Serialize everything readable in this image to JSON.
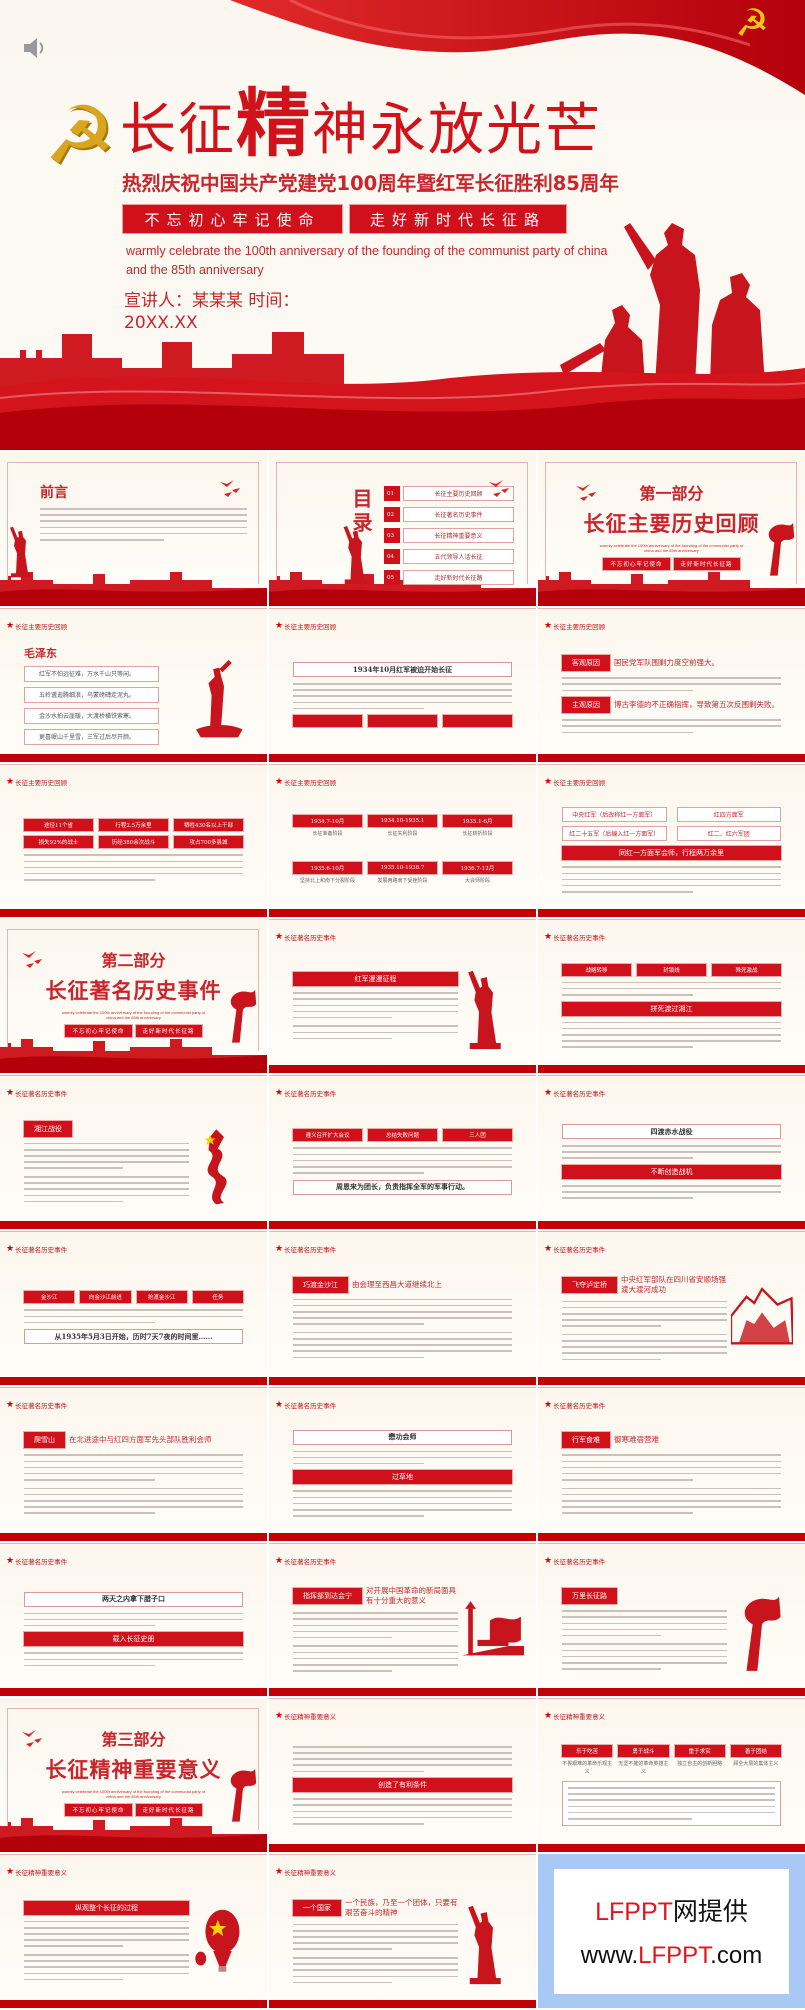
{
  "cover": {
    "title_a": "长征",
    "title_big": "精",
    "title_b": "神永放光芒",
    "subtitle": "热烈庆祝中国共产党建党100周年暨红军长征胜利85周年",
    "buttons": [
      "不忘初心牢记使命",
      "走好新时代长征路"
    ],
    "english": "warmly celebrate the 100th anniversary of the founding of the communist party of china and the 85th anniversary",
    "speaker": "宣讲人：某某某  时间：",
    "date": "20XX.XX",
    "icons": [
      "speaker-icon",
      "hammer-sickle-emblem",
      "red-flag",
      "soldiers-silhouette",
      "great-wall"
    ]
  },
  "colors": {
    "primary_red": "#d0101a",
    "dark_red": "#c20008",
    "cream": "#fcf7ee",
    "gold": "#d9a520",
    "ad_blue": "#a9c8f4"
  },
  "slides": [
    {
      "kind": "preface",
      "title": "前言",
      "figure": "soldier"
    },
    {
      "kind": "toc",
      "title": "目录",
      "items": [
        {
          "num": "01",
          "label": "长征主要历史回顾"
        },
        {
          "num": "02",
          "label": "长征著名历史事件"
        },
        {
          "num": "03",
          "label": "长征精神重要意义"
        },
        {
          "num": "04",
          "label": "五代领导人话长征"
        },
        {
          "num": "05",
          "label": "走好新时代长征路"
        }
      ]
    },
    {
      "kind": "part",
      "part": "第一部分",
      "title": "长征主要历史回顾",
      "english": "warmly celebrate the 100th anniversary of the founding of the communist party of china and the 85th anniversary",
      "buttons": [
        "不忘初心牢记使命",
        "走好新时代长征路"
      ]
    },
    {
      "kind": "content",
      "header": "长征主要历史回顾",
      "figure": "bugler",
      "blocks": [
        {
          "t": "title",
          "text": "毛泽东"
        },
        {
          "t": "verses",
          "items": [
            "红军不怕远征难，万水千山只等闲。",
            "五岭逶迤腾细浪，乌蒙磅礴走泥丸。",
            "金沙水拍云崖暖，大渡桥横铁索寒。",
            "更喜岷山千里雪，三军过后尽开颜。"
          ]
        }
      ]
    },
    {
      "kind": "content",
      "header": "长征主要历史回顾",
      "blocks": [
        {
          "t": "outline",
          "text": "1934年10月红军被迫开始长征"
        },
        {
          "t": "para"
        },
        {
          "t": "boxes",
          "items": [
            "",
            "",
            ""
          ]
        }
      ]
    },
    {
      "kind": "content",
      "header": "长征主要历史回顾",
      "blocks": [
        {
          "t": "tagline",
          "tag": "客观原因",
          "text": "国民党军队围剿力度空前强大。"
        },
        {
          "t": "para-s"
        },
        {
          "t": "tagline",
          "tag": "主观原因",
          "text": "博古李德的不正确指挥，导致第五次反围剿失败。"
        },
        {
          "t": "para-s"
        }
      ]
    },
    {
      "kind": "content",
      "header": "长征主要历史回顾",
      "blocks": [
        {
          "t": "boxes",
          "items": [
            "途径11个省",
            "行程2.5万余里",
            "牺牲430名以上干部"
          ]
        },
        {
          "t": "boxes",
          "items": [
            "损失92%的战士",
            "历经380余次战斗",
            "攻占700多县城"
          ]
        },
        {
          "t": "para"
        }
      ]
    },
    {
      "kind": "content",
      "header": "长征主要历史回顾",
      "blocks": [
        {
          "t": "boxes",
          "items": [
            "1934.7-10月",
            "1934.10-1935.1",
            "1935.1-6月"
          ],
          "captions": [
            "长征准备阶段",
            "长征失利阶段",
            "长征转折阶段"
          ]
        },
        {
          "t": "spacer"
        },
        {
          "t": "boxes",
          "items": [
            "1935.6-10月",
            "1935.10-1936.7",
            "1936.7-12月"
          ],
          "captions": [
            "坚持北上和南下分裂阶段",
            "发展两路南下受挫阶段",
            "大会师阶段"
          ]
        }
      ]
    },
    {
      "kind": "content",
      "header": "长征主要历史回顾",
      "blocks": [
        {
          "t": "ogrid",
          "items": [
            "中央红军（后改称红一方面军）",
            "红四方面军",
            "红二十五军（后编入红一方面军）",
            "红二、红六军团"
          ]
        },
        {
          "t": "banner",
          "text": "同红一方面军会师，行程两万余里"
        },
        {
          "t": "para"
        }
      ]
    },
    {
      "kind": "part",
      "part": "第二部分",
      "title": "长征著名历史事件",
      "english": "warmly celebrate the 100th anniversary of the founding of the communist party of china and the 85th anniversary",
      "buttons": [
        "不忘初心牢记使命",
        "走好新时代长征路"
      ]
    },
    {
      "kind": "content",
      "header": "长征著名历史事件",
      "figure": "soldier",
      "blocks": [
        {
          "t": "banner",
          "text": "红军漫漫征程"
        },
        {
          "t": "para"
        },
        {
          "t": "para-s"
        }
      ]
    },
    {
      "kind": "content",
      "header": "长征著名历史事件",
      "blocks": [
        {
          "t": "boxes",
          "items": [
            "战略转移",
            "封锁线",
            "殊死激战"
          ]
        },
        {
          "t": "para-s"
        },
        {
          "t": "banner",
          "text": "拼死渡过湘江"
        },
        {
          "t": "para"
        }
      ]
    },
    {
      "kind": "content",
      "header": "长征著名历史事件",
      "figure": "dragon",
      "blocks": [
        {
          "t": "tagline",
          "tag": "湘江战役",
          "text": ""
        },
        {
          "t": "para"
        },
        {
          "t": "para"
        }
      ]
    },
    {
      "kind": "content",
      "header": "长征著名历史事件",
      "blocks": [
        {
          "t": "boxes",
          "items": [
            "遵义召开扩大会议",
            "总结失败问题",
            "三人团"
          ]
        },
        {
          "t": "para"
        },
        {
          "t": "outline",
          "text": "周恩来为团长，负责指挥全军的军事行动。"
        }
      ]
    },
    {
      "kind": "content",
      "header": "长征著名历史事件",
      "blocks": [
        {
          "t": "outline",
          "text": "四渡赤水战役"
        },
        {
          "t": "para-s"
        },
        {
          "t": "banner",
          "text": "不断创造战机"
        },
        {
          "t": "para-s"
        }
      ]
    },
    {
      "kind": "content",
      "header": "长征著名历史事件",
      "blocks": [
        {
          "t": "boxes",
          "items": [
            "金沙江",
            "向金沙江前进",
            "抢渡金沙江",
            "任务"
          ]
        },
        {
          "t": "para-s"
        },
        {
          "t": "outline",
          "text": "从1935年5月3日开始，历时7天7夜的时间里……"
        }
      ]
    },
    {
      "kind": "content",
      "header": "长征著名历史事件",
      "blocks": [
        {
          "t": "tagline",
          "tag": "巧渡金沙江",
          "text": "由会理至西昌大道继续北上"
        },
        {
          "t": "para"
        },
        {
          "t": "para"
        }
      ]
    },
    {
      "kind": "content",
      "header": "长征著名历史事件",
      "figure": "wall-relief",
      "blocks": [
        {
          "t": "tagline",
          "tag": "飞夺泸定桥",
          "text": "中央红军部队在四川省安顺场强渡大渡河成功"
        },
        {
          "t": "para"
        },
        {
          "t": "para"
        }
      ]
    },
    {
      "kind": "content",
      "header": "长征著名历史事件",
      "blocks": [
        {
          "t": "tagline",
          "tag": "爬雪山",
          "text": "在北进途中与红四方面军先头部队胜利会师"
        },
        {
          "t": "para"
        },
        {
          "t": "para"
        }
      ]
    },
    {
      "kind": "content",
      "header": "长征著名历史事件",
      "blocks": [
        {
          "t": "outline",
          "text": "懋功会师"
        },
        {
          "t": "para-s"
        },
        {
          "t": "banner",
          "text": "过草地"
        },
        {
          "t": "para"
        }
      ]
    },
    {
      "kind": "content",
      "header": "长征著名历史事件",
      "blocks": [
        {
          "t": "tagline",
          "tag": "行军食难",
          "text": "御寒难宿营难"
        },
        {
          "t": "para"
        },
        {
          "t": "para"
        }
      ]
    },
    {
      "kind": "content",
      "header": "长征著名历史事件",
      "blocks": [
        {
          "t": "outline",
          "text": "两天之内拿下腊子口"
        },
        {
          "t": "para-s"
        },
        {
          "t": "banner",
          "text": "载入长征史册"
        },
        {
          "t": "para-s"
        }
      ]
    },
    {
      "kind": "content",
      "header": "长征著名历史事件",
      "figure": "tower",
      "blocks": [
        {
          "t": "tagline",
          "tag": "指挥部到达会宁",
          "text": "对开展中国革命的新局面具有十分重大的意义"
        },
        {
          "t": "para"
        },
        {
          "t": "para"
        }
      ]
    },
    {
      "kind": "content",
      "header": "长征著名历史事件",
      "figure": "flag",
      "blocks": [
        {
          "t": "tagline",
          "tag": "万里长征路",
          "text": ""
        },
        {
          "t": "para"
        },
        {
          "t": "para"
        }
      ]
    },
    {
      "kind": "part",
      "part": "第三部分",
      "title": "长征精神重要意义",
      "english": "warmly celebrate the 100th anniversary of the founding of the communist party of china and the 85th anniversary",
      "buttons": [
        "不忘初心牢记使命",
        "走好新时代长征路"
      ]
    },
    {
      "kind": "content",
      "header": "长征精神重要意义",
      "blocks": [
        {
          "t": "para"
        },
        {
          "t": "banner",
          "text": "创造了有利条件"
        },
        {
          "t": "para"
        }
      ]
    },
    {
      "kind": "content",
      "header": "长征精神重要意义",
      "blocks": [
        {
          "t": "boxes",
          "items": [
            "乐于吃苦",
            "勇于战斗",
            "重于求实",
            "善于团结"
          ],
          "captions": [
            "不畏艰难的革命乐观主义",
            "无坚不摧的革命英雄主义",
            "独立自主的创新胆略",
            "顾全大局的集体主义"
          ]
        },
        {
          "t": "framed-para"
        }
      ]
    },
    {
      "kind": "content",
      "header": "长征精神重要意义",
      "figure": "balloon",
      "blocks": [
        {
          "t": "banner",
          "text": "纵观整个长征的过程"
        },
        {
          "t": "para"
        },
        {
          "t": "para"
        }
      ]
    },
    {
      "kind": "content",
      "header": "长征精神重要意义",
      "figure": "soldier",
      "blocks": [
        {
          "t": "tagline",
          "tag": "一个国家",
          "text": "一个民族，乃至一个团体，只要有艰苦奋斗的精神"
        },
        {
          "t": "para"
        },
        {
          "t": "para"
        }
      ]
    },
    {
      "kind": "ad",
      "brand_red": "LFPPT",
      "brand_rest": "网提供",
      "url_pre": "www.",
      "url_red": "LFPPT",
      "url_post": ".com"
    }
  ]
}
